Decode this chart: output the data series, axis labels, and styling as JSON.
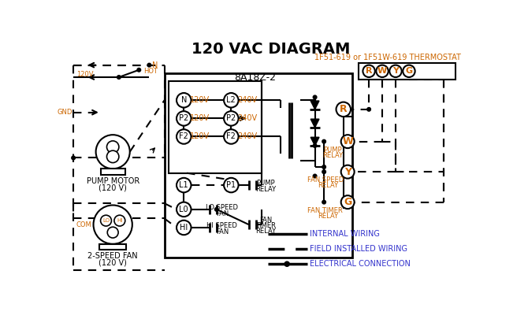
{
  "title": "120 VAC DIAGRAM",
  "title_fontsize": 14,
  "bg_color": "#ffffff",
  "line_color": "#000000",
  "orange_color": "#cc6600",
  "blue_color": "#3333cc",
  "thermostat_label": "1F51-619 or 1F51W-619 THERMOSTAT",
  "control_box_label": "8A18Z-2",
  "legend_items": [
    {
      "label": "INTERNAL WIRING"
    },
    {
      "label": "FIELD INSTALLED WIRING"
    },
    {
      "label": "ELECTRICAL CONNECTION"
    }
  ]
}
